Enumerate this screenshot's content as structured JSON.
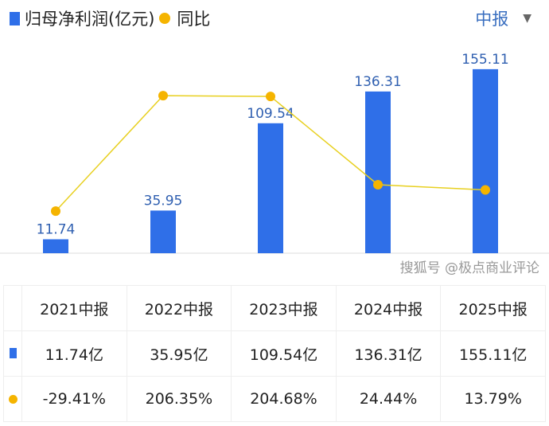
{
  "legend": {
    "bar_label": "归母净利润(亿元)",
    "line_label": "同比"
  },
  "period_select": {
    "value": "中报",
    "icon": "triangle-down-icon"
  },
  "colors": {
    "bar": "#2f6fe8",
    "line": "#f5b400",
    "line_stroke": "#e8d020",
    "positive": "#d2394a",
    "negative": "#1a9a6c"
  },
  "chart_data": {
    "type": "bar+line",
    "categories": [
      "2021中报",
      "2022中报",
      "2023中报",
      "2024中报",
      "2025中报"
    ],
    "series": [
      {
        "name": "归母净利润(亿元)",
        "type": "bar",
        "values": [
          11.74,
          35.95,
          109.54,
          136.31,
          155.11
        ],
        "labels": [
          "11.74",
          "35.95",
          "109.54",
          "136.31",
          "155.11"
        ]
      },
      {
        "name": "同比",
        "type": "line",
        "values": [
          -29.41,
          206.35,
          204.68,
          24.44,
          13.79
        ]
      }
    ]
  },
  "table": {
    "headers": [
      "2021中报",
      "2022中报",
      "2023中报",
      "2024中报",
      "2025中报"
    ],
    "values": [
      "11.74亿",
      "35.95亿",
      "109.54亿",
      "136.31亿",
      "155.11亿"
    ],
    "yoy": [
      "-29.41%",
      "206.35%",
      "204.68%",
      "24.44%",
      "13.79%"
    ]
  },
  "watermark": "搜狐号 @极点商业评论"
}
